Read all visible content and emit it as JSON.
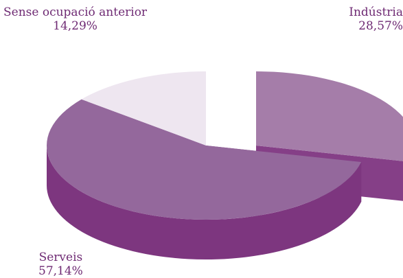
{
  "chart_data": {
    "type": "pie",
    "style": "3d-exploded",
    "slices": [
      {
        "label": "Indústria",
        "value": 28.57,
        "value_label": "28,57%",
        "color_top": "#a57da9",
        "color_side": "#853f87"
      },
      {
        "label": "Serveis",
        "value": 57.14,
        "value_label": "57,14%",
        "color_top": "#94689c",
        "color_side": "#7d367f"
      },
      {
        "label": "Sense ocupació anterior",
        "value": 14.29,
        "value_label": "14,29%",
        "color_top": "#eee6f0",
        "color_side": "#94649a"
      }
    ],
    "text_color": "#6e2a73"
  }
}
